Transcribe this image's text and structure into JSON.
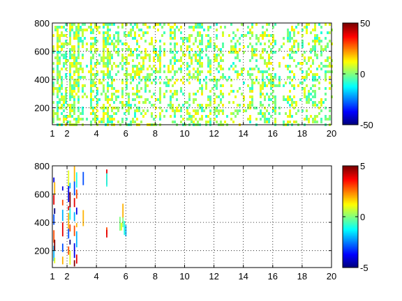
{
  "chart_data": [
    {
      "type": "heatmap",
      "title": "",
      "xlabel": "",
      "ylabel": "",
      "xlim": [
        1,
        20
      ],
      "ylim": [
        80,
        800
      ],
      "xticks": [
        1,
        2,
        4,
        6,
        8,
        10,
        12,
        14,
        16,
        18,
        20
      ],
      "yticks": [
        200,
        400,
        600,
        800
      ],
      "grid": true,
      "colormap": "jet",
      "colorbar": {
        "range": [
          -50,
          50
        ],
        "ticks": [
          -50,
          0,
          50
        ]
      },
      "density_by_x": [
        {
          "x": 1,
          "density": 0.55
        },
        {
          "x": 2,
          "density": 0.55
        },
        {
          "x": 3,
          "density": 0.5
        },
        {
          "x": 4,
          "density": 0.45
        },
        {
          "x": 5,
          "density": 0.5
        },
        {
          "x": 6,
          "density": 0.45
        },
        {
          "x": 8,
          "density": 0.3
        },
        {
          "x": 10,
          "density": 0.35
        },
        {
          "x": 12,
          "density": 0.3
        },
        {
          "x": 14,
          "density": 0.2
        },
        {
          "x": 15,
          "density": 0.4
        },
        {
          "x": 16,
          "density": 0.3
        },
        {
          "x": 18,
          "density": 0.3
        },
        {
          "x": 20,
          "density": 0.3
        }
      ],
      "value_range_shown": [
        -10,
        15
      ]
    },
    {
      "type": "heatmap",
      "title": "",
      "xlabel": "",
      "ylabel": "",
      "xlim": [
        1,
        20
      ],
      "ylim": [
        80,
        800
      ],
      "xticks": [
        1,
        2,
        4,
        6,
        8,
        10,
        12,
        14,
        16,
        18,
        20
      ],
      "yticks": [
        200,
        400,
        600,
        800
      ],
      "grid": true,
      "colormap": "jet",
      "colorbar": {
        "range": [
          -5,
          5
        ],
        "ticks": [
          -5,
          0,
          5
        ]
      },
      "points": [
        {
          "x": 1.1,
          "y": 700,
          "v": -4
        },
        {
          "x": 1.1,
          "y": 560,
          "v": 4
        },
        {
          "x": 1.1,
          "y": 420,
          "v": -3
        },
        {
          "x": 1.1,
          "y": 300,
          "v": 3
        },
        {
          "x": 1.1,
          "y": 180,
          "v": -2
        },
        {
          "x": 1.15,
          "y": 640,
          "v": 2
        },
        {
          "x": 1.15,
          "y": 480,
          "v": -5
        },
        {
          "x": 1.15,
          "y": 240,
          "v": 5
        },
        {
          "x": 1.15,
          "y": 130,
          "v": 1
        },
        {
          "x": 1.7,
          "y": 640,
          "v": -4
        },
        {
          "x": 1.7,
          "y": 540,
          "v": 3
        },
        {
          "x": 1.7,
          "y": 450,
          "v": -2
        },
        {
          "x": 1.7,
          "y": 350,
          "v": 4
        },
        {
          "x": 1.7,
          "y": 220,
          "v": -3
        },
        {
          "x": 1.7,
          "y": 130,
          "v": 2
        },
        {
          "x": 2.1,
          "y": 710,
          "v": 1
        },
        {
          "x": 2.1,
          "y": 600,
          "v": -4
        },
        {
          "x": 2.1,
          "y": 500,
          "v": 4
        },
        {
          "x": 2.1,
          "y": 410,
          "v": 2
        },
        {
          "x": 2.1,
          "y": 320,
          "v": -3
        },
        {
          "x": 2.1,
          "y": 200,
          "v": 3
        },
        {
          "x": 2.2,
          "y": 660,
          "v": -2
        },
        {
          "x": 2.2,
          "y": 560,
          "v": 5
        },
        {
          "x": 2.2,
          "y": 460,
          "v": -1
        },
        {
          "x": 2.2,
          "y": 360,
          "v": 3
        },
        {
          "x": 2.2,
          "y": 260,
          "v": -5
        },
        {
          "x": 2.2,
          "y": 150,
          "v": 1
        },
        {
          "x": 2.5,
          "y": 740,
          "v": 2
        },
        {
          "x": 2.5,
          "y": 640,
          "v": -3
        },
        {
          "x": 2.5,
          "y": 540,
          "v": 4
        },
        {
          "x": 2.5,
          "y": 440,
          "v": -2
        },
        {
          "x": 2.5,
          "y": 340,
          "v": 3
        },
        {
          "x": 2.5,
          "y": 200,
          "v": -4
        },
        {
          "x": 2.5,
          "y": 110,
          "v": 5
        },
        {
          "x": 2.65,
          "y": 700,
          "v": -1
        },
        {
          "x": 2.65,
          "y": 600,
          "v": 3
        },
        {
          "x": 2.65,
          "y": 480,
          "v": -4
        },
        {
          "x": 2.65,
          "y": 380,
          "v": 2
        },
        {
          "x": 2.65,
          "y": 280,
          "v": -2
        },
        {
          "x": 2.65,
          "y": 140,
          "v": 4
        },
        {
          "x": 3.1,
          "y": 710,
          "v": -3
        },
        {
          "x": 3.1,
          "y": 430,
          "v": 2
        },
        {
          "x": 4.7,
          "y": 720,
          "v": 4
        },
        {
          "x": 4.7,
          "y": 700,
          "v": -1
        },
        {
          "x": 4.7,
          "y": 340,
          "v": 3
        },
        {
          "x": 4.7,
          "y": 320,
          "v": 4
        },
        {
          "x": 5.6,
          "y": 390,
          "v": 0
        },
        {
          "x": 5.7,
          "y": 370,
          "v": 1
        },
        {
          "x": 5.8,
          "y": 480,
          "v": 2
        },
        {
          "x": 5.8,
          "y": 400,
          "v": 0
        },
        {
          "x": 5.9,
          "y": 360,
          "v": -1
        },
        {
          "x": 6.0,
          "y": 340,
          "v": -2
        }
      ]
    }
  ]
}
